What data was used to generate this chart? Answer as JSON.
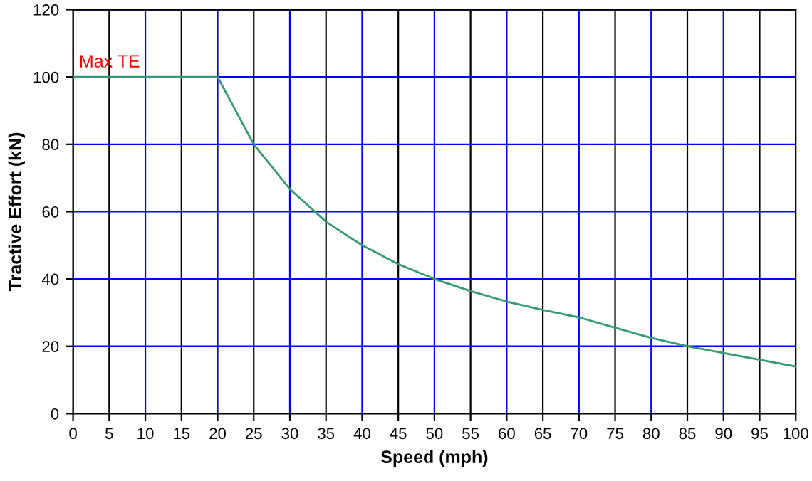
{
  "chart_data": {
    "type": "line",
    "xlabel": "Speed (mph)",
    "ylabel": "Tractive Effort (kN)",
    "x": [
      0,
      5,
      10,
      15,
      20,
      25,
      30,
      35,
      40,
      45,
      50,
      55,
      60,
      65,
      70,
      75,
      80,
      85,
      90,
      95,
      100
    ],
    "series": [
      {
        "color": "#339977",
        "values": [
          100,
          100,
          100,
          100,
          100,
          80,
          66.7,
          57,
          50,
          44.4,
          40,
          36.4,
          33.3,
          30.8,
          28.6,
          25.5,
          22.5,
          20,
          18,
          16,
          14
        ]
      }
    ],
    "xlim": [
      0,
      100
    ],
    "ylim": [
      0,
      120
    ],
    "xticks": [
      0,
      5,
      10,
      15,
      20,
      25,
      30,
      35,
      40,
      45,
      50,
      55,
      60,
      65,
      70,
      75,
      80,
      85,
      90,
      95,
      100
    ],
    "yticks": [
      0,
      20,
      40,
      60,
      80,
      100,
      120
    ],
    "grid": true,
    "marker": "none",
    "line_style": "solid",
    "legend": false,
    "annotations": [
      {
        "text": "Max TE",
        "x": 0,
        "y": 100
      }
    ]
  }
}
